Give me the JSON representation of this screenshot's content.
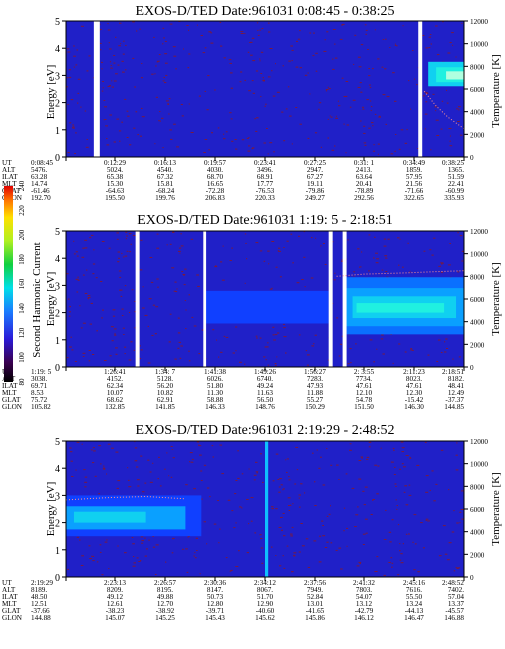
{
  "chart_data": [
    {
      "type": "heatmap",
      "title": "EXOS-D/TED   Date:961031  0:08:45 - 0:38:25",
      "ylabel": "Energy [eV]",
      "y2label": "Temperature [K]",
      "ylim": [
        0,
        5
      ],
      "y2lim": [
        0,
        12000
      ],
      "yticks": [
        "0",
        "1",
        "2",
        "3",
        "4",
        "5"
      ],
      "y2ticks": [
        "0",
        "2000",
        "4000",
        "6000",
        "8000",
        "10000",
        "12000"
      ],
      "background_level": 90,
      "gaps": [
        [
          0.07,
          0.085
        ],
        [
          0.885,
          0.895
        ]
      ],
      "blocks": [
        {
          "x": [
            0.91,
            1.0
          ],
          "y": [
            2.6,
            3.5
          ],
          "level": 150
        },
        {
          "x": [
            0.93,
            1.0
          ],
          "y": [
            2.75,
            3.3
          ],
          "level": 175
        },
        {
          "x": [
            0.955,
            1.0
          ],
          "y": [
            2.85,
            3.15
          ],
          "level": 200
        }
      ],
      "temperature": {
        "x": [
          0.9,
          0.93,
          0.96,
          1.0
        ],
        "y": [
          5800,
          4500,
          3500,
          2500
        ]
      },
      "ephemeris": {
        "labels": [
          "UT",
          "ALT",
          "ILAT",
          "MLT",
          "GLAT",
          "GLON"
        ],
        "rows": [
          [
            "0:08:45",
            "0:12:29",
            "0:16:13",
            "0:19:57",
            "0:23:41",
            "0:27:25",
            "0:31: 1",
            "0:34:49",
            "0:38:25"
          ],
          [
            "5476.",
            "5024.",
            "4540.",
            "4030.",
            "3496.",
            "2947.",
            "2413.",
            "1859.",
            "1365."
          ],
          [
            "63.28",
            "65.38",
            "67.32",
            "68.70",
            "68.91",
            "67.27",
            "63.64",
            "57.95",
            "51.59"
          ],
          [
            "14.74",
            "15.30",
            "15.81",
            "16.65",
            "17.77",
            "19.11",
            "20.41",
            "21.56",
            "22.41"
          ],
          [
            "-61.46",
            "-64.63",
            "-68.24",
            "-72.28",
            "-76.53",
            "-79.86",
            "-78.89",
            "-71.66",
            "-60.99"
          ],
          [
            "192.70",
            "195.50",
            "199.76",
            "206.83",
            "220.33",
            "249.27",
            "292.56",
            "322.65",
            "335.93"
          ]
        ]
      }
    },
    {
      "type": "heatmap",
      "title": "EXOS-D/TED   Date:961031  1:19: 5 - 2:18:51",
      "ylabel": "Energy [eV]",
      "y2label": "Temperature [K]",
      "ylim": [
        0,
        5
      ],
      "y2lim": [
        0,
        12000
      ],
      "yticks": [
        "0",
        "1",
        "2",
        "3",
        "4",
        "5"
      ],
      "y2ticks": [
        "0",
        "2000",
        "4000",
        "6000",
        "8000",
        "10000",
        "12000"
      ],
      "background_level": 90,
      "gaps": [
        [
          0.175,
          0.185
        ],
        [
          0.345,
          0.352
        ],
        [
          0.66,
          0.67
        ],
        [
          0.695,
          0.705
        ]
      ],
      "blocks": [
        {
          "x": [
            0.35,
            0.66
          ],
          "y": [
            1.6,
            2.8
          ],
          "level": 112
        },
        {
          "x": [
            0.705,
            1.0
          ],
          "y": [
            1.2,
            3.3
          ],
          "level": 120
        },
        {
          "x": [
            0.705,
            1.0
          ],
          "y": [
            1.5,
            2.9
          ],
          "level": 135
        },
        {
          "x": [
            0.72,
            0.98
          ],
          "y": [
            1.8,
            2.6
          ],
          "level": 155
        },
        {
          "x": [
            0.73,
            0.95
          ],
          "y": [
            2.0,
            2.35
          ],
          "level": 172
        }
      ],
      "temperature": {
        "x": [
          0.68,
          0.75,
          0.85,
          0.92,
          1.0
        ],
        "y": [
          8000,
          8200,
          8300,
          8400,
          8500
        ]
      },
      "ephemeris": {
        "labels": [
          "UT",
          "ALT",
          "ILAT",
          "MLT",
          "GLAT",
          "GLON"
        ],
        "rows": [
          [
            "1:19: 5",
            "1:26:41",
            "1:34: 7",
            "1:41:38",
            "1:49:26",
            "1:56:27",
            "2: 3:55",
            "2:11:23",
            "2:18:51"
          ],
          [
            "3038.",
            "4152.",
            "5128.",
            "6026.",
            "6740.",
            "7283.",
            "7734.",
            "8023.",
            "8182."
          ],
          [
            "69.71",
            "62.34",
            "56.20",
            "51.80",
            "49.24",
            "47.93",
            "47.61",
            "47.61",
            "48.41"
          ],
          [
            "8.53",
            "10.07",
            "10.82",
            "11.30",
            "11.63",
            "11.88",
            "12.10",
            "12.30",
            "12.49"
          ],
          [
            "75.72",
            "68.62",
            "62.91",
            "58.88",
            "56.50",
            "55.27",
            "54.78",
            "-15.42",
            "-37.37"
          ],
          [
            "105.82",
            "132.85",
            "141.85",
            "146.33",
            "148.76",
            "150.29",
            "151.50",
            "146.30",
            "144.85"
          ]
        ]
      }
    },
    {
      "type": "heatmap",
      "title": "EXOS-D/TED   Date:961031  2:19:29 - 2:48:52",
      "ylabel": "Energy [eV]",
      "y2label": "Temperature [K]",
      "ylim": [
        0,
        5
      ],
      "y2lim": [
        0,
        12000
      ],
      "yticks": [
        "0",
        "1",
        "2",
        "3",
        "4",
        "5"
      ],
      "y2ticks": [
        "0",
        "2000",
        "4000",
        "6000",
        "8000",
        "10000",
        "12000"
      ],
      "background_level": 90,
      "gaps": [],
      "spikes": [
        [
          0.5,
          0.508
        ]
      ],
      "blocks": [
        {
          "x": [
            0.0,
            0.34
          ],
          "y": [
            1.5,
            3.0
          ],
          "level": 112
        },
        {
          "x": [
            0.0,
            0.3
          ],
          "y": [
            1.75,
            2.6
          ],
          "level": 135
        },
        {
          "x": [
            0.02,
            0.2
          ],
          "y": [
            2.0,
            2.4
          ],
          "level": 150
        }
      ],
      "temperature": {
        "x": [
          0.0,
          0.1,
          0.2,
          0.3
        ],
        "y": [
          6800,
          7000,
          7100,
          6900
        ]
      },
      "ephemeris": {
        "labels": [
          "UT",
          "ALT",
          "ILAT",
          "MLT",
          "GLAT",
          "GLON"
        ],
        "rows": [
          [
            "2:19:29",
            "2:23:13",
            "2:26:57",
            "2:30:36",
            "2:34:12",
            "2:37:56",
            "2:41:32",
            "2:45:16",
            "2:48:52"
          ],
          [
            "8189.",
            "8209.",
            "8195.",
            "8147.",
            "8067.",
            "7949.",
            "7803.",
            "7616.",
            "7402."
          ],
          [
            "48.50",
            "49.12",
            "49.88",
            "50.73",
            "51.70",
            "52.84",
            "54.07",
            "55.50",
            "57.04"
          ],
          [
            "12.51",
            "12.61",
            "12.70",
            "12.80",
            "12.90",
            "13.01",
            "13.12",
            "13.24",
            "13.37"
          ],
          [
            "-37.66",
            "-38.23",
            "-38.92",
            "-39.71",
            "-40.60",
            "-41.65",
            "-42.79",
            "-44.13",
            "-45.57"
          ],
          [
            "144.88",
            "145.07",
            "145.25",
            "145.43",
            "145.62",
            "145.86",
            "146.12",
            "146.47",
            "146.88"
          ]
        ]
      }
    }
  ],
  "colorbar": {
    "label": "Second Harmonic Current",
    "ticks": [
      "80",
      "100",
      "120",
      "140",
      "160",
      "180",
      "200",
      "220",
      "240"
    ],
    "range": [
      80,
      240
    ]
  },
  "colors": {
    "background": "#2020c8",
    "noise": "#7a1a40"
  }
}
